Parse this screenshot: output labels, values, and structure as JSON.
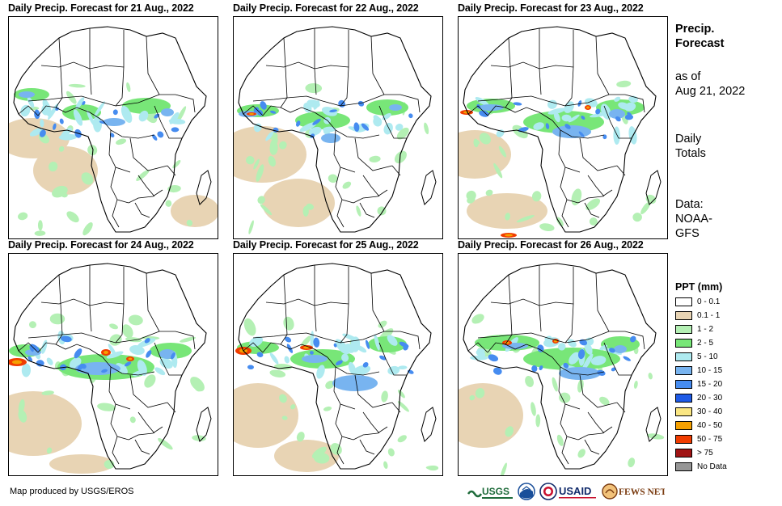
{
  "panels": [
    {
      "title": "Daily Precip. Forecast for 21 Aug., 2022"
    },
    {
      "title": "Daily Precip. Forecast for 22 Aug., 2022"
    },
    {
      "title": "Daily Precip. Forecast for 23 Aug., 2022"
    },
    {
      "title": "Daily Precip. Forecast for 24 Aug., 2022"
    },
    {
      "title": "Daily Precip. Forecast for 25 Aug., 2022"
    },
    {
      "title": "Daily Precip. Forecast for 26 Aug., 2022"
    }
  ],
  "side": {
    "title_line1": "Precip.",
    "title_line2": "Forecast",
    "asof_line1": "as of",
    "asof_line2": "Aug 21, 2022",
    "totals_line1": "Daily",
    "totals_line2": "Totals",
    "source_line1": "Data:",
    "source_line2": "NOAA-",
    "source_line3": "GFS"
  },
  "legend": {
    "title": "PPT (mm)",
    "items": [
      {
        "label": "0 - 0.1",
        "color": "#ffffff"
      },
      {
        "label": "0.1 - 1",
        "color": "#e8d4b4"
      },
      {
        "label": "1 - 2",
        "color": "#b4f0b4"
      },
      {
        "label": "2 - 5",
        "color": "#78e678"
      },
      {
        "label": "5 - 10",
        "color": "#aeeaf0"
      },
      {
        "label": "10 - 15",
        "color": "#78b4f0"
      },
      {
        "label": "15 - 20",
        "color": "#468cf0"
      },
      {
        "label": "20 - 30",
        "color": "#1e5ae6"
      },
      {
        "label": "30 - 40",
        "color": "#fae682"
      },
      {
        "label": "40 - 50",
        "color": "#f5a000"
      },
      {
        "label": "50 - 75",
        "color": "#f03c00"
      },
      {
        "label": "> 75",
        "color": "#a01414"
      },
      {
        "label": "No Data",
        "color": "#969696"
      }
    ]
  },
  "footer": {
    "credit": "Map produced by USGS/EROS",
    "logos": [
      "USGS",
      "NOAA",
      "USAID",
      "FEWS NET"
    ]
  }
}
